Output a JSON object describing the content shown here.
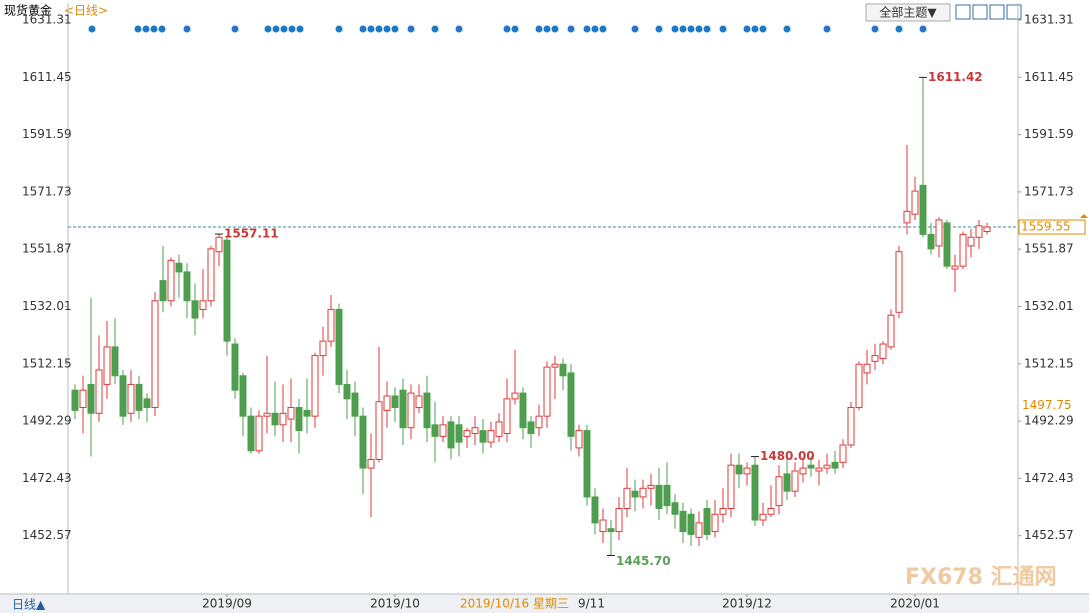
{
  "chart_data": {
    "type": "candlestick",
    "title": "现货黄金",
    "subtitle": "<日线>",
    "theme_button": "全部主题▼",
    "period_button": "日线▲",
    "watermark": "FX678 汇通网",
    "up_color": "#e03a3a",
    "down_color": "#4f9e4f",
    "categories": [
      null,
      null,
      null,
      null,
      null,
      null,
      null,
      null,
      null,
      null,
      null,
      null,
      null,
      null,
      null,
      null,
      null,
      null,
      null,
      "2019/09",
      null,
      null,
      null,
      null,
      null,
      null,
      null,
      null,
      null,
      null,
      null,
      null,
      null,
      null,
      null,
      null,
      null,
      null,
      null,
      null,
      "2019/10",
      null,
      null,
      null,
      null,
      null,
      null,
      null,
      null,
      null,
      null,
      null,
      null,
      null,
      null,
      null,
      null,
      null,
      null,
      null,
      null,
      null,
      null,
      null,
      null,
      null,
      null,
      null,
      null,
      null,
      null,
      null,
      null,
      null,
      null,
      null,
      null,
      null,
      null,
      null,
      null,
      null,
      null,
      null,
      "2019/12",
      null,
      null,
      null,
      null,
      null,
      null,
      null,
      null,
      null,
      null,
      null,
      null,
      null,
      null,
      null,
      null,
      null,
      null,
      null,
      null,
      "2020/01",
      null,
      null,
      null,
      null,
      null,
      null,
      null,
      null,
      null
    ],
    "open": [
      1503,
      1497,
      1505,
      1495,
      1505,
      1518,
      1508,
      1495,
      1505,
      1500,
      1497,
      1541,
      1534,
      1547,
      1544,
      1534,
      1531,
      1534,
      1551,
      1555,
      1519,
      1508,
      1494,
      1482,
      1494,
      1495,
      1491,
      1493,
      1497,
      1496,
      1494,
      1515,
      1520,
      1531,
      1505,
      1502,
      1494,
      1476,
      1479,
      1496,
      1501,
      1503,
      1490,
      1497,
      1502,
      1491,
      1487,
      1492,
      1491,
      1487,
      1488,
      1489,
      1485,
      1487,
      1488,
      1500,
      1502,
      1492,
      1490,
      1494,
      1511,
      1512,
      1509,
      1483,
      1489,
      1466,
      1454,
      1455,
      1454,
      1462,
      1468,
      1466,
      1469,
      1470,
      1470,
      1464,
      1461,
      1460,
      1452,
      1462,
      1454,
      1460,
      1462,
      1477,
      1474,
      1477,
      1458,
      1460,
      1463,
      1474,
      1468,
      1474,
      1477,
      1475,
      1476,
      1478,
      1478,
      1484,
      1497,
      1509,
      1513,
      1514,
      1518,
      1530,
      1561,
      1564,
      1574,
      1557,
      1553,
      1561,
      1545,
      1546,
      1553,
      1556,
      1558
    ],
    "high": [
      1505,
      1508,
      1535,
      1522,
      1527,
      1528,
      1510,
      1510,
      1508,
      1502,
      1537,
      1553,
      1549,
      1550,
      1547,
      1540,
      1545,
      1553,
      1557.11,
      1556,
      1521,
      1509,
      1497,
      1496,
      1515,
      1506,
      1505,
      1507,
      1500,
      1507,
      1516,
      1525,
      1536,
      1533,
      1510,
      1506,
      1497,
      1488,
      1518,
      1506,
      1504,
      1507,
      1505,
      1505,
      1508,
      1499,
      1494,
      1494,
      1494,
      1490,
      1494,
      1493,
      1492,
      1495,
      1507,
      1517,
      1504,
      1494,
      1498,
      1513,
      1515,
      1514,
      1512,
      1491,
      1491,
      1469,
      1462,
      1458,
      1466,
      1476,
      1472,
      1472,
      1474,
      1476,
      1478,
      1467,
      1464,
      1462,
      1461,
      1465,
      1465,
      1469,
      1481,
      1481,
      1478,
      1480,
      1464,
      1470,
      1477,
      1481,
      1478,
      1479,
      1480,
      1479,
      1481,
      1482,
      1486,
      1499,
      1513,
      1517,
      1519,
      1520,
      1531,
      1553,
      1588,
      1577,
      1611.42,
      1561,
      1563,
      1562,
      1550,
      1558,
      1559,
      1562,
      1561
    ],
    "low": [
      1493,
      1488,
      1480,
      1492,
      1500,
      1505,
      1491,
      1492,
      1493,
      1492,
      1494,
      1530,
      1532,
      1535,
      1528,
      1522,
      1528,
      1532,
      1546,
      1515,
      1500,
      1487,
      1481,
      1481,
      1488,
      1487,
      1485,
      1485,
      1481,
      1488,
      1490,
      1508,
      1518,
      1502,
      1493,
      1487,
      1467,
      1459,
      1478,
      1490,
      1492,
      1484,
      1486,
      1495,
      1485,
      1478,
      1485,
      1479,
      1480,
      1483,
      1484,
      1481,
      1483,
      1485,
      1485,
      1498,
      1486,
      1483,
      1487,
      1490,
      1500,
      1503,
      1482,
      1480,
      1463,
      1453,
      1450,
      1445.7,
      1451,
      1459,
      1461,
      1462,
      1463,
      1458,
      1460,
      1455,
      1450,
      1449,
      1449,
      1451,
      1452,
      1457,
      1459,
      1469,
      1470,
      1456,
      1456,
      1459,
      1460,
      1465,
      1466,
      1471,
      1473,
      1470,
      1474,
      1474,
      1476,
      1483,
      1496,
      1505,
      1510,
      1512,
      1517,
      1528,
      1557,
      1562,
      1556,
      1550,
      1549,
      1545,
      1537,
      1545,
      1549,
      1552,
      1557
    ],
    "close": [
      1496,
      1503,
      1495,
      1510,
      1518,
      1508,
      1494,
      1505,
      1496,
      1497,
      1534,
      1534,
      1548,
      1544,
      1534,
      1528,
      1534,
      1552,
      1556,
      1520,
      1503,
      1494,
      1482,
      1494,
      1495,
      1491,
      1495,
      1497,
      1489,
      1494,
      1515,
      1520,
      1531,
      1505,
      1500,
      1494,
      1476,
      1479,
      1499,
      1501,
      1497,
      1490,
      1502,
      1501,
      1490,
      1487,
      1491,
      1483,
      1485,
      1489,
      1490,
      1485,
      1489,
      1492,
      1500,
      1502,
      1490,
      1488,
      1494,
      1511,
      1512,
      1508,
      1487,
      1489,
      1466,
      1457,
      1458,
      1454,
      1462,
      1469,
      1466,
      1469,
      1470,
      1462,
      1463,
      1460,
      1454,
      1453,
      1457,
      1453,
      1460,
      1462,
      1477,
      1474,
      1476,
      1458,
      1460,
      1462,
      1473,
      1468,
      1475,
      1476,
      1476,
      1476,
      1477,
      1476,
      1484,
      1497,
      1512,
      1512,
      1515,
      1519,
      1529,
      1551,
      1565,
      1572,
      1557,
      1552,
      1562,
      1546,
      1546,
      1557,
      1556,
      1560,
      1559.55
    ],
    "ylim": [
      1433.75,
      1636.51
    ],
    "yticks": [
      1631.31,
      1611.45,
      1591.59,
      1571.73,
      1551.87,
      1532.01,
      1512.15,
      1492.29,
      1472.43,
      1452.57
    ],
    "annotations": [
      {
        "value": 1611.42,
        "label": "1611.42"
      },
      {
        "value": 1557.11,
        "label": "1557.11"
      },
      {
        "value": 1480,
        "label": "1480.00"
      },
      {
        "value": 1445.7,
        "label": "1445.70"
      }
    ],
    "last_price": 1559.55,
    "cursor": {
      "price": 1497.75,
      "date": "2019/10/16 星期三",
      "label": "9/11"
    }
  }
}
